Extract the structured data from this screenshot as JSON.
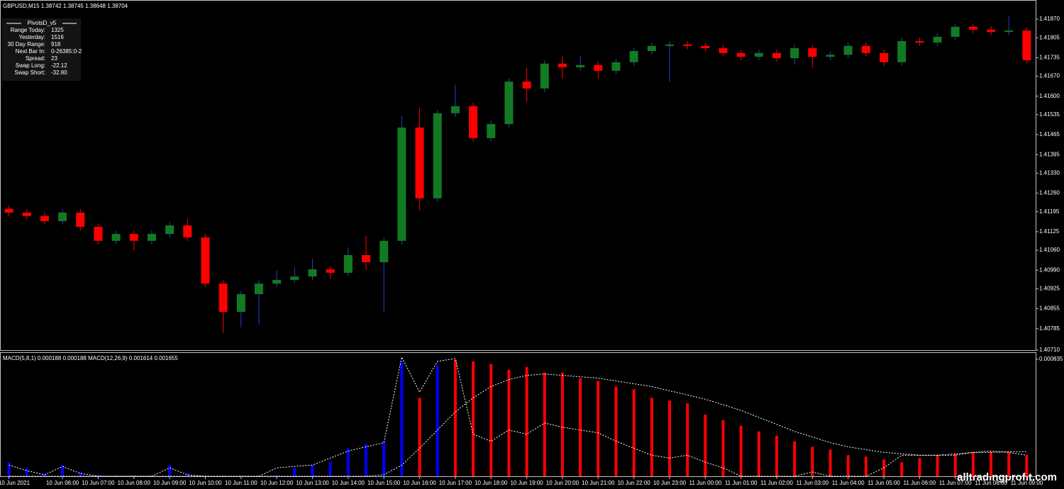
{
  "header": "GBPUSD,M15  1.38742 1.38745 1.38648 1.38704",
  "info_panel": {
    "title": "PivotsD_v5",
    "rows": [
      [
        "Range  Today:",
        "1325"
      ],
      [
        "Yesterday:",
        "1516"
      ],
      [
        "30 Day Range:",
        "918"
      ],
      [
        "Next Bar In:",
        "0-26385:0-2"
      ],
      [
        "Spread:",
        "23"
      ],
      [
        "Swap  Long:",
        "-22.12"
      ],
      [
        "Swap  Short:",
        "-32.80"
      ]
    ]
  },
  "watermark": "alltradingprofit.com",
  "chart_data": [
    {
      "type": "candlestick",
      "categories": [
        "10 Jun 2021",
        null,
        null,
        "10 Jun 06:00",
        null,
        "10 Jun 07:00",
        null,
        "10 Jun 08:00",
        null,
        "10 Jun 09:00",
        null,
        "10 Jun 10:00",
        null,
        "10 Jun 11:00",
        null,
        "10 Jun 12:00",
        null,
        "10 Jun 13:00",
        null,
        "10 Jun 14:00",
        null,
        "10 Jun 15:00",
        null,
        "10 Jun 16:00",
        null,
        "10 Jun 17:00",
        null,
        "10 Jun 18:00",
        null,
        "10 Jun 19:00",
        null,
        "10 Jun 20:00",
        null,
        "10 Jun 21:00",
        null,
        "10 Jun 22:00",
        null,
        "10 Jun 23:00",
        null,
        "11 Jun 00:00",
        null,
        "11 Jun 01:00",
        null,
        "11 Jun 02:00",
        null,
        "11 Jun 03:00",
        null,
        "11 Jun 04:00",
        null,
        "11 Jun 05:00",
        null,
        "11 Jun 06:00",
        null,
        "11 Jun 07:00",
        null,
        "11 Jun 08:00",
        null,
        "11 Jun 09:00"
      ],
      "open": [
        1.41205,
        1.41192,
        1.4118,
        1.41162,
        1.41192,
        1.41142,
        1.41093,
        1.41117,
        1.41093,
        1.41117,
        1.41147,
        1.41105,
        1.40943,
        1.40844,
        1.40906,
        1.40943,
        1.40956,
        1.40968,
        1.40993,
        1.40981,
        1.41043,
        1.41018,
        1.41093,
        1.4149,
        1.41242,
        1.4154,
        1.41565,
        1.41453,
        1.41502,
        1.41651,
        1.41627,
        1.41714,
        1.41701,
        1.41709,
        1.41689,
        1.41719,
        1.41758,
        1.41776,
        1.41781,
        1.41776,
        1.41768,
        1.41751,
        1.41738,
        1.41751,
        1.41733,
        1.41768,
        1.41738,
        1.41745,
        1.41776,
        1.41751,
        1.41719,
        1.41793,
        1.41788,
        1.41808,
        1.41843,
        1.41833,
        1.41825,
        1.4183
      ],
      "high": [
        1.41217,
        1.41204,
        1.41192,
        1.41204,
        1.41204,
        1.41154,
        1.41129,
        1.41129,
        1.41129,
        1.41159,
        1.4117,
        1.41117,
        1.40955,
        1.40918,
        1.40955,
        1.4099,
        1.41,
        1.4103,
        1.41005,
        1.4107,
        1.4111,
        1.41105,
        1.4153,
        1.4156,
        1.41552,
        1.4164,
        1.41577,
        1.41514,
        1.41663,
        1.417,
        1.41726,
        1.4174,
        1.4174,
        1.41721,
        1.41731,
        1.4177,
        1.41788,
        1.41793,
        1.41793,
        1.41788,
        1.4178,
        1.41763,
        1.41763,
        1.41763,
        1.4178,
        1.4178,
        1.41757,
        1.41788,
        1.41788,
        1.41763,
        1.41805,
        1.41805,
        1.4182,
        1.41855,
        1.41855,
        1.41845,
        1.4188,
        1.41842
      ],
      "low": [
        1.4118,
        1.41168,
        1.4115,
        1.4115,
        1.4113,
        1.41081,
        1.41081,
        1.4106,
        1.41081,
        1.41105,
        1.41093,
        1.40931,
        1.4077,
        1.4079,
        1.408,
        1.40931,
        1.40944,
        1.40956,
        1.4096,
        1.40969,
        1.4099,
        1.40844,
        1.41081,
        1.412,
        1.4123,
        1.41528,
        1.41441,
        1.41441,
        1.4149,
        1.4158,
        1.41615,
        1.4166,
        1.41689,
        1.4166,
        1.41677,
        1.41707,
        1.41746,
        1.4165,
        1.41764,
        1.41756,
        1.41739,
        1.41726,
        1.41726,
        1.41721,
        1.4171,
        1.417,
        1.41726,
        1.41733,
        1.41739,
        1.41707,
        1.41707,
        1.41776,
        1.41776,
        1.41796,
        1.41821,
        1.41813,
        1.41813,
        1.41714
      ],
      "close": [
        1.41192,
        1.4118,
        1.41162,
        1.41192,
        1.41142,
        1.41093,
        1.41117,
        1.41093,
        1.41117,
        1.41147,
        1.41105,
        1.40943,
        1.40844,
        1.40906,
        1.40943,
        1.40956,
        1.40968,
        1.40993,
        1.40981,
        1.41043,
        1.41018,
        1.41093,
        1.4149,
        1.41242,
        1.4154,
        1.41565,
        1.41453,
        1.41502,
        1.41651,
        1.41627,
        1.41714,
        1.41701,
        1.41709,
        1.41689,
        1.41719,
        1.41758,
        1.41776,
        1.41781,
        1.41776,
        1.41768,
        1.41751,
        1.41738,
        1.41751,
        1.41733,
        1.41768,
        1.41738,
        1.41745,
        1.41776,
        1.41751,
        1.41719,
        1.41793,
        1.41788,
        1.41808,
        1.41843,
        1.41833,
        1.41825,
        1.4183,
        1.41726
      ],
      "up_color": "#127a22",
      "down_color": "#ff0000",
      "wick_up_color": "#2a3fd0",
      "wick_down_color": "#ff0000",
      "ylim": [
        1.4071,
        1.41937
      ],
      "yticks": [
        {
          "value": 1.4187,
          "label": "1.41870"
        },
        1.41805,
        1.41735,
        {
          "value": 1.4167,
          "label": "1.41670"
        },
        {
          "value": 1.416,
          "label": "1.41600"
        },
        1.41535,
        1.41465,
        1.41395,
        {
          "value": 1.4133,
          "label": "1.41330"
        },
        {
          "value": 1.4126,
          "label": "1.41260"
        },
        1.41195,
        1.41125,
        {
          "value": 1.4106,
          "label": "1.41060"
        },
        {
          "value": 1.4099,
          "label": "1.40990"
        },
        1.40925,
        1.40855,
        1.40785,
        {
          "value": 1.4071,
          "label": "1.40710"
        }
      ]
    },
    {
      "type": "macd",
      "legend": "MACD(5,8,1) 0.000188 0.000188  MACD(12,26,9) 0.001614 0.001655",
      "values": [
        0.0001,
        6e-05,
        2e-05,
        8e-05,
        3e-05,
        1e-05,
        5e-06,
        5e-06,
        5e-06,
        8e-05,
        2e-05,
        5e-06,
        5e-06,
        5e-06,
        5e-06,
        1e-05,
        6e-05,
        8e-05,
        0.0001,
        0.0002,
        0.00023,
        0.00025,
        0.00082,
        0.00056,
        0.00079,
        0.00083,
        0.00082,
        0.0008,
        0.00076,
        0.00078,
        0.00074,
        0.00074,
        0.0007,
        0.00068,
        0.00064,
        0.00062,
        0.00056,
        0.00054,
        0.00052,
        0.00044,
        0.0004,
        0.00036,
        0.00032,
        0.00029,
        0.00025,
        0.00021,
        0.00019,
        0.00015,
        0.00014,
        0.00012,
        0.0001,
        0.00013,
        0.00015,
        0.00016,
        0.00017,
        0.000175,
        0.00017,
        0.00015
      ],
      "colors": [
        "#0000ff",
        "#0000ff",
        "#0000ff",
        "#0000ff",
        "#0000ff",
        "#0000ff",
        "#0000ff",
        "#0000ff",
        "#0000ff",
        "#0000ff",
        "#0000ff",
        "#0000ff",
        "#0000ff",
        "#0000ff",
        "#0000ff",
        "#0000ff",
        "#0000ff",
        "#0000ff",
        "#0000ff",
        "#0000ff",
        "#0000ff",
        "#0000ff",
        "#0000ff",
        "#ff0000",
        "#0000ff",
        "#ff0000",
        "#ff0000",
        "#ff0000",
        "#ff0000",
        "#ff0000",
        "#ff0000",
        "#ff0000",
        "#ff0000",
        "#ff0000",
        "#ff0000",
        "#ff0000",
        "#ff0000",
        "#ff0000",
        "#ff0000",
        "#ff0000",
        "#ff0000",
        "#ff0000",
        "#ff0000",
        "#ff0000",
        "#ff0000",
        "#ff0000",
        "#ff0000",
        "#ff0000",
        "#ff0000",
        "#ff0000",
        "#ff0000",
        "#ff0000",
        "#ff0000",
        "#ff0000",
        "#ff0000",
        "#ff0000",
        "#ff0000",
        "#ff0000"
      ],
      "lines": [
        {
          "color": "#ffffff",
          "values": [
            8e-05,
            4e-05,
            1e-05,
            7e-05,
            2e-05,
            0,
            0,
            0,
            0,
            6e-05,
            1e-05,
            0,
            0,
            0,
            0,
            6e-05,
            7e-05,
            8e-05,
            0.00013,
            0.00018,
            0.00021,
            0.00024,
            0.00085,
            0.0006,
            0.00082,
            0.00084,
            0.0003,
            0.00025,
            0.00033,
            0.0003,
            0.00038,
            0.00035,
            0.00033,
            0.00031,
            0.00025,
            0.0002,
            0.00015,
            0.00013,
            0.00015,
            0.0001,
            6e-05,
            0,
            0,
            0,
            0,
            3e-05,
            0,
            0,
            0,
            6e-05,
            0.00015,
            0.00015,
            0.00015,
            0.00015,
            0.00017,
            0.00018,
            0.00017,
            0.00015
          ]
        },
        {
          "color": "#ffffff",
          "values": [
            0,
            0,
            0,
            0,
            0,
            0,
            0,
            0,
            0,
            0,
            0,
            0,
            0,
            0,
            0,
            0,
            0,
            0,
            0,
            0,
            0,
            1e-05,
            8e-05,
            0.0002,
            0.00033,
            0.00046,
            0.00056,
            0.00064,
            0.00069,
            0.00072,
            0.00073,
            0.00072,
            0.00071,
            0.0007,
            0.00068,
            0.00066,
            0.00064,
            0.00061,
            0.00058,
            0.00055,
            0.00051,
            0.00047,
            0.00042,
            0.00037,
            0.00032,
            0.00028,
            0.00024,
            0.00021,
            0.00019,
            0.00017,
            0.00016,
            0.00015,
            0.00015,
            0.00016,
            0.00017,
            0.00017,
            0.000175,
            0.000175
          ]
        }
      ],
      "ylim": [
        0,
        0.00087
      ],
      "yticks": [
        0.000835
      ]
    }
  ]
}
